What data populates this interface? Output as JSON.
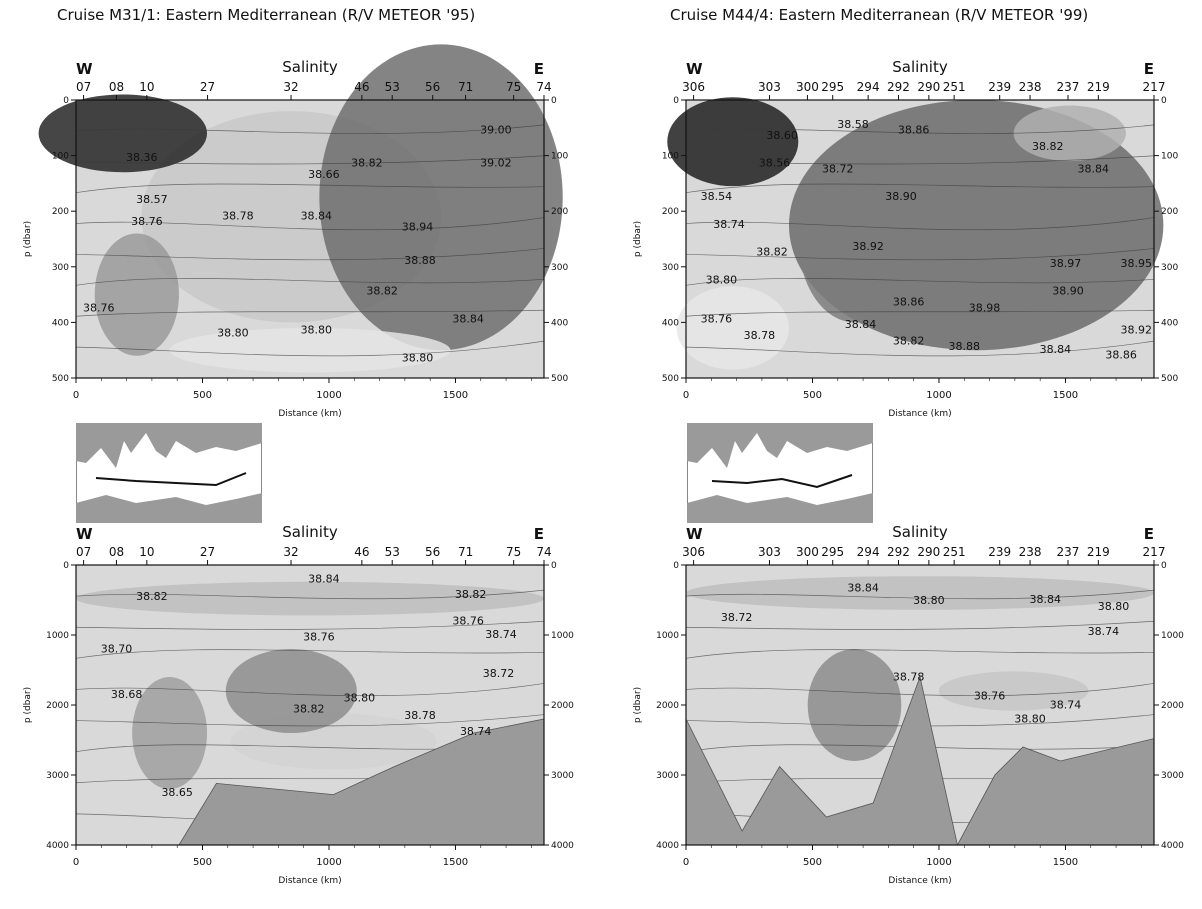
{
  "columns": [
    {
      "title": "Cruise M31/1: Eastern Mediterranean (R/V METEOR '95)"
    },
    {
      "title": "Cruise M44/4: Eastern Mediterranean (R/V METEOR '99)"
    }
  ],
  "colors": {
    "ink": "#111111",
    "land": "#9a9a9a",
    "sea": "#ffffff",
    "seafloor": "#9a9a9a"
  },
  "chart_data": [
    {
      "type": "heatmap",
      "panel": "M31/1 upper",
      "title": "Salinity",
      "xlabel": "Distance (km)",
      "ylabel": "p (dbar)",
      "xlim": [
        0,
        1850
      ],
      "ylim": [
        500,
        0
      ],
      "x_ticks": [
        "0",
        "500",
        "1000",
        "1500"
      ],
      "y_ticks": [
        "0",
        "100",
        "200",
        "300",
        "400",
        "500"
      ],
      "end_labels": [
        "W",
        "E"
      ],
      "stations": [
        {
          "label": "07",
          "x": 30
        },
        {
          "label": "08",
          "x": 160
        },
        {
          "label": "10",
          "x": 280
        },
        {
          "label": "27",
          "x": 520
        },
        {
          "label": "32",
          "x": 850
        },
        {
          "label": "46",
          "x": 1130
        },
        {
          "label": "53",
          "x": 1250
        },
        {
          "label": "56",
          "x": 1410
        },
        {
          "label": "71",
          "x": 1540
        },
        {
          "label": "75",
          "x": 1730
        },
        {
          "label": "74",
          "x": 1850
        }
      ],
      "contour_labels": [
        {
          "text": "38.36",
          "x": 260,
          "y": 110
        },
        {
          "text": "38.57",
          "x": 300,
          "y": 185
        },
        {
          "text": "38.76",
          "x": 280,
          "y": 225
        },
        {
          "text": "38.78",
          "x": 640,
          "y": 215
        },
        {
          "text": "38.66",
          "x": 980,
          "y": 140
        },
        {
          "text": "38.84",
          "x": 950,
          "y": 215
        },
        {
          "text": "38.82",
          "x": 1150,
          "y": 120
        },
        {
          "text": "39.00",
          "x": 1660,
          "y": 60
        },
        {
          "text": "39.02",
          "x": 1660,
          "y": 120
        },
        {
          "text": "38.94",
          "x": 1350,
          "y": 235
        },
        {
          "text": "38.88",
          "x": 1360,
          "y": 295
        },
        {
          "text": "38.82",
          "x": 1210,
          "y": 350
        },
        {
          "text": "38.80",
          "x": 620,
          "y": 425
        },
        {
          "text": "38.80",
          "x": 950,
          "y": 420
        },
        {
          "text": "38.84",
          "x": 1550,
          "y": 400
        },
        {
          "text": "38.80",
          "x": 1350,
          "y": 470
        },
        {
          "text": "38.76",
          "x": 90,
          "y": 380
        }
      ]
    },
    {
      "type": "heatmap",
      "panel": "M44/4 upper",
      "title": "Salinity",
      "xlabel": "Distance (km)",
      "ylabel": "p (dbar)",
      "xlim": [
        0,
        1850
      ],
      "ylim": [
        500,
        0
      ],
      "x_ticks": [
        "0",
        "500",
        "1000",
        "1500"
      ],
      "y_ticks": [
        "0",
        "100",
        "200",
        "300",
        "400",
        "500"
      ],
      "end_labels": [
        "W",
        "E"
      ],
      "stations": [
        {
          "label": "306",
          "x": 30
        },
        {
          "label": "303",
          "x": 330
        },
        {
          "label": "300",
          "x": 480
        },
        {
          "label": "295",
          "x": 580
        },
        {
          "label": "294",
          "x": 720
        },
        {
          "label": "292",
          "x": 840
        },
        {
          "label": "290",
          "x": 960
        },
        {
          "label": "251",
          "x": 1060
        },
        {
          "label": "239",
          "x": 1240
        },
        {
          "label": "238",
          "x": 1360
        },
        {
          "label": "237",
          "x": 1510
        },
        {
          "label": "219",
          "x": 1630
        },
        {
          "label": "217",
          "x": 1850
        }
      ],
      "contour_labels": [
        {
          "text": "38.54",
          "x": 120,
          "y": 180
        },
        {
          "text": "38.74",
          "x": 170,
          "y": 230
        },
        {
          "text": "38.56",
          "x": 350,
          "y": 120
        },
        {
          "text": "38.60",
          "x": 380,
          "y": 70
        },
        {
          "text": "38.58",
          "x": 660,
          "y": 50
        },
        {
          "text": "38.72",
          "x": 600,
          "y": 130
        },
        {
          "text": "38.82",
          "x": 340,
          "y": 280
        },
        {
          "text": "38.80",
          "x": 140,
          "y": 330
        },
        {
          "text": "38.78",
          "x": 290,
          "y": 430
        },
        {
          "text": "38.76",
          "x": 120,
          "y": 400
        },
        {
          "text": "38.90",
          "x": 850,
          "y": 180
        },
        {
          "text": "38.92",
          "x": 720,
          "y": 270
        },
        {
          "text": "38.86",
          "x": 900,
          "y": 60
        },
        {
          "text": "38.82",
          "x": 1430,
          "y": 90
        },
        {
          "text": "38.84",
          "x": 1610,
          "y": 130
        },
        {
          "text": "38.86",
          "x": 880,
          "y": 370
        },
        {
          "text": "38.84",
          "x": 690,
          "y": 410
        },
        {
          "text": "38.82",
          "x": 880,
          "y": 440
        },
        {
          "text": "38.98",
          "x": 1180,
          "y": 380
        },
        {
          "text": "38.97",
          "x": 1500,
          "y": 300
        },
        {
          "text": "38.90",
          "x": 1510,
          "y": 350
        },
        {
          "text": "38.95",
          "x": 1780,
          "y": 300
        },
        {
          "text": "38.92",
          "x": 1780,
          "y": 420
        },
        {
          "text": "38.88",
          "x": 1100,
          "y": 450
        },
        {
          "text": "38.84",
          "x": 1460,
          "y": 455
        },
        {
          "text": "38.86",
          "x": 1720,
          "y": 465
        }
      ]
    },
    {
      "type": "heatmap",
      "panel": "M31/1 full depth",
      "title": "Salinity",
      "xlabel": "Distance (km)",
      "ylabel": "p (dbar)",
      "xlim": [
        0,
        1850
      ],
      "ylim": [
        4000,
        0
      ],
      "x_ticks": [
        "0",
        "500",
        "1000",
        "1500"
      ],
      "y_ticks": [
        "0",
        "1000",
        "2000",
        "3000",
        "4000"
      ],
      "end_labels": [
        "W",
        "E"
      ],
      "stations": [
        {
          "label": "07",
          "x": 30
        },
        {
          "label": "08",
          "x": 160
        },
        {
          "label": "10",
          "x": 280
        },
        {
          "label": "27",
          "x": 520
        },
        {
          "label": "32",
          "x": 850
        },
        {
          "label": "46",
          "x": 1130
        },
        {
          "label": "53",
          "x": 1250
        },
        {
          "label": "56",
          "x": 1410
        },
        {
          "label": "71",
          "x": 1540
        },
        {
          "label": "75",
          "x": 1730
        },
        {
          "label": "74",
          "x": 1850
        }
      ],
      "contour_labels": [
        {
          "text": "38.82",
          "x": 300,
          "y": 500
        },
        {
          "text": "38.84",
          "x": 980,
          "y": 250
        },
        {
          "text": "38.82",
          "x": 1560,
          "y": 470
        },
        {
          "text": "38.76",
          "x": 1550,
          "y": 850
        },
        {
          "text": "38.74",
          "x": 1680,
          "y": 1040
        },
        {
          "text": "38.76",
          "x": 960,
          "y": 1080
        },
        {
          "text": "38.70",
          "x": 160,
          "y": 1250
        },
        {
          "text": "38.72",
          "x": 1670,
          "y": 1600
        },
        {
          "text": "38.68",
          "x": 200,
          "y": 1900
        },
        {
          "text": "38.82",
          "x": 920,
          "y": 2110
        },
        {
          "text": "38.80",
          "x": 1120,
          "y": 1950
        },
        {
          "text": "38.78",
          "x": 1360,
          "y": 2200
        },
        {
          "text": "38.74",
          "x": 1580,
          "y": 2430
        },
        {
          "text": "38.65",
          "x": 400,
          "y": 3300
        }
      ]
    },
    {
      "type": "heatmap",
      "panel": "M44/4 full depth",
      "title": "Salinity",
      "xlabel": "Distance (km)",
      "ylabel": "p (dbar)",
      "xlim": [
        0,
        1850
      ],
      "ylim": [
        4000,
        0
      ],
      "x_ticks": [
        "0",
        "500",
        "1000",
        "1500"
      ],
      "y_ticks": [
        "0",
        "1000",
        "2000",
        "3000",
        "4000"
      ],
      "end_labels": [
        "W",
        "E"
      ],
      "stations": [
        {
          "label": "306",
          "x": 30
        },
        {
          "label": "303",
          "x": 330
        },
        {
          "label": "300",
          "x": 480
        },
        {
          "label": "295",
          "x": 580
        },
        {
          "label": "294",
          "x": 720
        },
        {
          "label": "292",
          "x": 840
        },
        {
          "label": "290",
          "x": 960
        },
        {
          "label": "251",
          "x": 1060
        },
        {
          "label": "239",
          "x": 1240
        },
        {
          "label": "238",
          "x": 1360
        },
        {
          "label": "237",
          "x": 1510
        },
        {
          "label": "219",
          "x": 1630
        },
        {
          "label": "217",
          "x": 1850
        }
      ],
      "contour_labels": [
        {
          "text": "38.72",
          "x": 200,
          "y": 800
        },
        {
          "text": "38.84",
          "x": 700,
          "y": 380
        },
        {
          "text": "38.80",
          "x": 960,
          "y": 560
        },
        {
          "text": "38.84",
          "x": 1420,
          "y": 540
        },
        {
          "text": "38.80",
          "x": 1690,
          "y": 640
        },
        {
          "text": "38.74",
          "x": 1650,
          "y": 1000
        },
        {
          "text": "38.78",
          "x": 880,
          "y": 1650
        },
        {
          "text": "38.76",
          "x": 1200,
          "y": 1920
        },
        {
          "text": "38.74",
          "x": 1500,
          "y": 2050
        },
        {
          "text": "38.80",
          "x": 1360,
          "y": 2250
        }
      ]
    }
  ]
}
